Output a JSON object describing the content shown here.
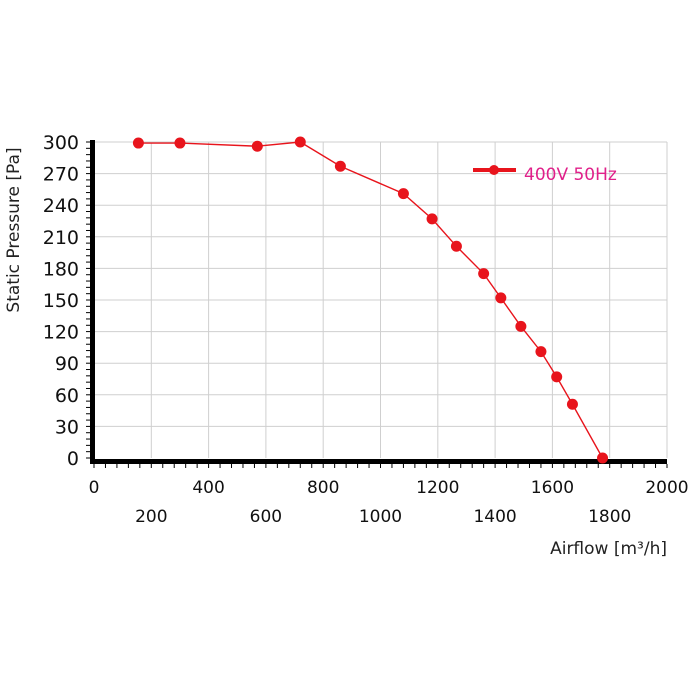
{
  "chart_data": {
    "type": "line",
    "xlabel": "Airflow [m³/h]",
    "ylabel": "Static Pressure [Pa]",
    "xlim": [
      0,
      2000
    ],
    "ylim": [
      0,
      300
    ],
    "x_ticks_row1": [
      "0",
      "400",
      "800",
      "1200",
      "1600",
      "2000"
    ],
    "x_ticks_row2": [
      "200",
      "600",
      "1000",
      "1400",
      "1800"
    ],
    "y_ticks": [
      "0",
      "30",
      "60",
      "90",
      "120",
      "150",
      "180",
      "210",
      "240",
      "270",
      "300"
    ],
    "grid": true,
    "legend_position": "top-right",
    "series": [
      {
        "name": "400V 50Hz",
        "color": "#e8141c",
        "label_color": "#e0208a",
        "x": [
          155,
          300,
          570,
          720,
          860,
          1080,
          1180,
          1265,
          1360,
          1420,
          1490,
          1560,
          1615,
          1670,
          1775
        ],
        "y": [
          299,
          299,
          296,
          300,
          277,
          251,
          227,
          201,
          175,
          152,
          125,
          101,
          77,
          51,
          0
        ]
      }
    ]
  }
}
